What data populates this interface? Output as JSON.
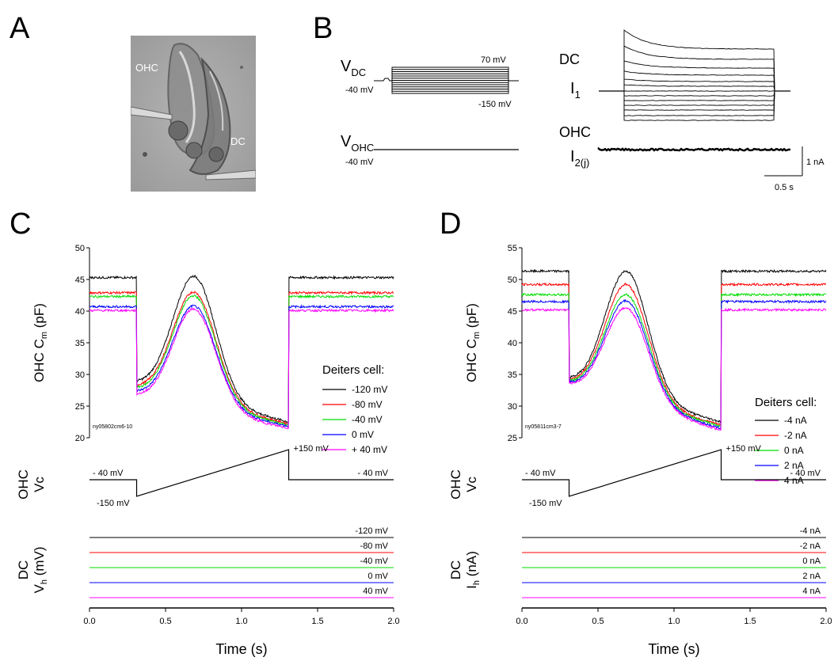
{
  "panels": {
    "a": "A",
    "b": "B",
    "c": "C",
    "d": "D"
  },
  "panel_a": {
    "ohc_label": "OHC",
    "dc_label": "DC"
  },
  "panel_b": {
    "vdc_main": "V",
    "vdc_sub": "DC",
    "vohc_main": "V",
    "vohc_sub": "OHC",
    "hold_left": "-40 mV",
    "top_step": "70 mV",
    "bottom_step": "-150 mV",
    "hold_ohc": "-40 mV",
    "dc_label": "DC",
    "i1_main": "I",
    "i1_sub": "1",
    "ohc_label": "OHC",
    "i2_main": "I",
    "i2_sub": "2(j)",
    "scale_y": "1 nA",
    "scale_x": "0.5 s",
    "step_count": 13
  },
  "colors": {
    "black": "#000000",
    "red": "#ff0000",
    "green": "#00dd00",
    "blue": "#0000ff",
    "magenta": "#ff00ff"
  },
  "chart_data": [
    {
      "id": "C",
      "type": "line",
      "ylabel_main": "OHC C",
      "ylabel_sub": "m",
      "ylabel_unit": " (pF)",
      "ylim": [
        20,
        50
      ],
      "yticks": [
        "20",
        "25",
        "30",
        "35",
        "40",
        "45",
        "50"
      ],
      "file_label": "ny05802cm6-10",
      "legend_title": "Deiters cell:",
      "series": [
        {
          "name": "-120 mV",
          "color": "#000000",
          "baseline": 45.3,
          "peak": 45.5,
          "start": 28.5,
          "end": 22.5
        },
        {
          "name": "-80 mV",
          "color": "#ff0000",
          "baseline": 42.9,
          "peak": 43.0,
          "start": 27.9,
          "end": 22.2
        },
        {
          "name": "-40 mV",
          "color": "#00dd00",
          "baseline": 42.3,
          "peak": 42.4,
          "start": 27.5,
          "end": 22.0
        },
        {
          "name": "0 mV",
          "color": "#0000ff",
          "baseline": 40.7,
          "peak": 40.8,
          "start": 27.0,
          "end": 21.8
        },
        {
          "name": "+ 40 mV",
          "color": "#ff00ff",
          "baseline": 40.1,
          "peak": 40.3,
          "start": 26.5,
          "end": 21.5
        }
      ],
      "vc_label": "OHC\nVc",
      "vc": {
        "hold": "- 40 mV",
        "hold_right": "- 40 mV",
        "low": "-150 mV",
        "high": "+150 mV"
      },
      "hold_label_main": "DC",
      "hold_label_sub": "h",
      "hold_label_var": "V",
      "hold_label_unit": " (mV)",
      "hold_levels": [
        "-120 mV",
        "-80 mV",
        "-40 mV",
        "0 mV",
        "40 mV"
      ],
      "x": {
        "ticks": [
          "0.0",
          "0.5",
          "1.0",
          "1.5",
          "2.0"
        ],
        "xlabel": "Time (s)",
        "xlim": [
          0,
          2
        ]
      }
    },
    {
      "id": "D",
      "type": "line",
      "ylabel_main": "OHC C",
      "ylabel_sub": "m",
      "ylabel_unit": " (pF)",
      "ylim": [
        25,
        55
      ],
      "yticks": [
        "25",
        "30",
        "35",
        "40",
        "45",
        "50",
        "55"
      ],
      "file_label": "ny05811cm3-7",
      "legend_title": "Deiters cell:",
      "series": [
        {
          "name": "-4 nA",
          "color": "#000000",
          "baseline": 51.3,
          "peak": 51.3,
          "start": 34.0,
          "end": 27.5
        },
        {
          "name": "-2 nA",
          "color": "#ff0000",
          "baseline": 49.2,
          "peak": 49.2,
          "start": 33.8,
          "end": 27.0
        },
        {
          "name": "0 nA",
          "color": "#00dd00",
          "baseline": 47.6,
          "peak": 47.6,
          "start": 33.6,
          "end": 26.8
        },
        {
          "name": "2 nA",
          "color": "#0000ff",
          "baseline": 46.5,
          "peak": 46.6,
          "start": 33.4,
          "end": 26.5
        },
        {
          "name": "4 nA",
          "color": "#ff00ff",
          "baseline": 45.2,
          "peak": 45.5,
          "start": 33.2,
          "end": 26.2
        }
      ],
      "vc_label": "OHC\nVc",
      "vc": {
        "hold": "- 40 mV",
        "hold_right": "- 40 mV",
        "low": "-150 mV",
        "high": "+150 mV"
      },
      "hold_label_main": "DC",
      "hold_label_sub": "h",
      "hold_label_var": "I",
      "hold_label_unit": " (nA)",
      "hold_levels": [
        "-4 nA",
        "-2 nA",
        "0 nA",
        "2 nA",
        "4 nA"
      ],
      "x": {
        "ticks": [
          "0.0",
          "0.5",
          "1.0",
          "1.5",
          "2.0"
        ],
        "xlabel": "Time (s)",
        "xlim": [
          0,
          2
        ]
      }
    }
  ]
}
